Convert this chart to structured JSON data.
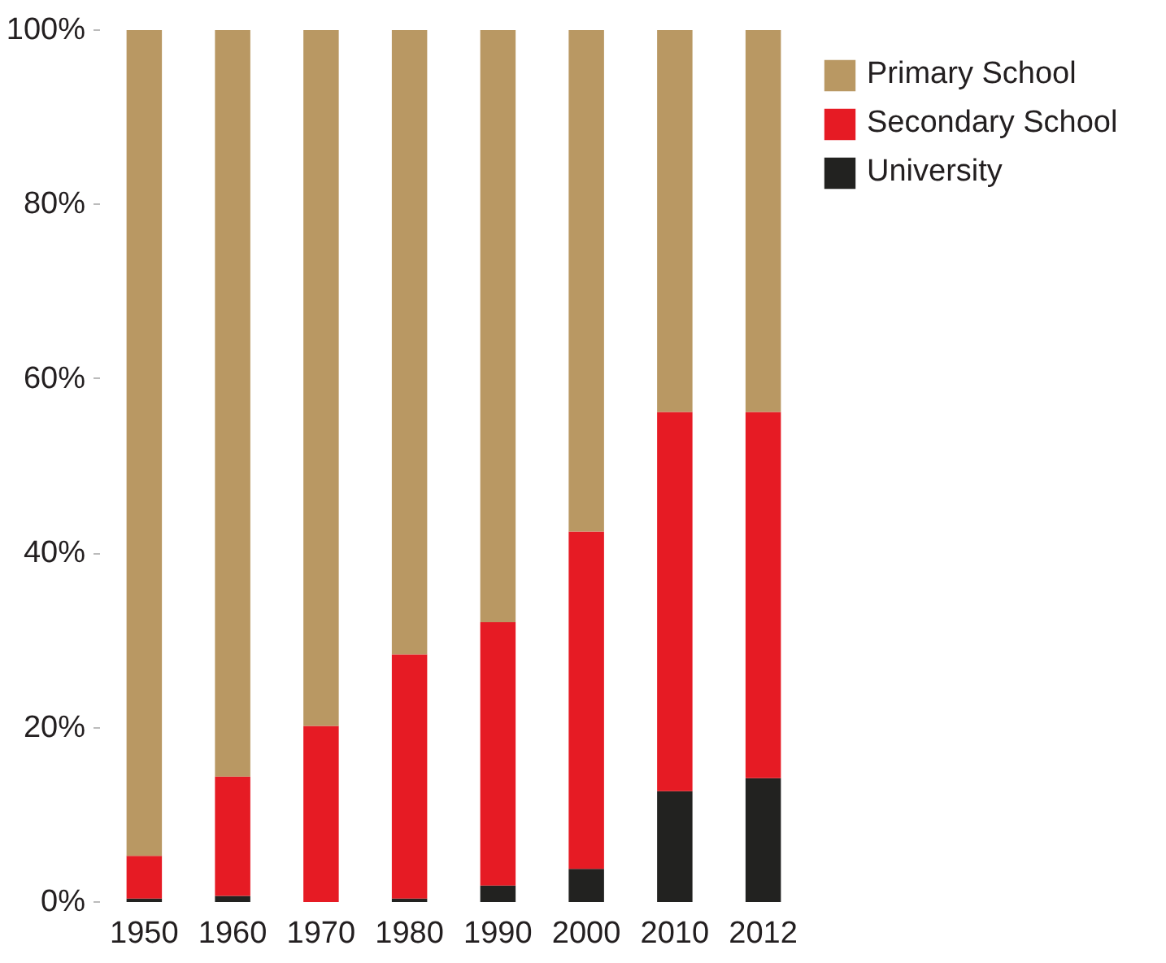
{
  "chart_data": {
    "type": "bar",
    "stacked": true,
    "categories": [
      "1950",
      "1960",
      "1970",
      "1980",
      "1990",
      "2000",
      "2010",
      "2012"
    ],
    "series": [
      {
        "name": "University",
        "color": "#222220",
        "values": [
          0.4,
          0.7,
          0,
          0.4,
          1.9,
          3.8,
          12.7,
          14.2
        ]
      },
      {
        "name": "Secondary School",
        "color": "#e61b24",
        "values": [
          4.9,
          13.7,
          20.2,
          28.0,
          30.2,
          38.7,
          43.5,
          42.0
        ]
      },
      {
        "name": "Primary School",
        "color": "#b99863",
        "values": [
          94.7,
          85.6,
          79.8,
          71.6,
          67.9,
          57.5,
          43.8,
          43.8
        ]
      }
    ],
    "ylim": [
      0,
      100
    ],
    "yticks": [
      {
        "value": 0,
        "label": "0%"
      },
      {
        "value": 20,
        "label": "20%"
      },
      {
        "value": 40,
        "label": "40%"
      },
      {
        "value": 60,
        "label": "60%"
      },
      {
        "value": 80,
        "label": "80%"
      },
      {
        "value": 100,
        "label": "100%"
      }
    ],
    "legend": "top right",
    "grid": false
  }
}
